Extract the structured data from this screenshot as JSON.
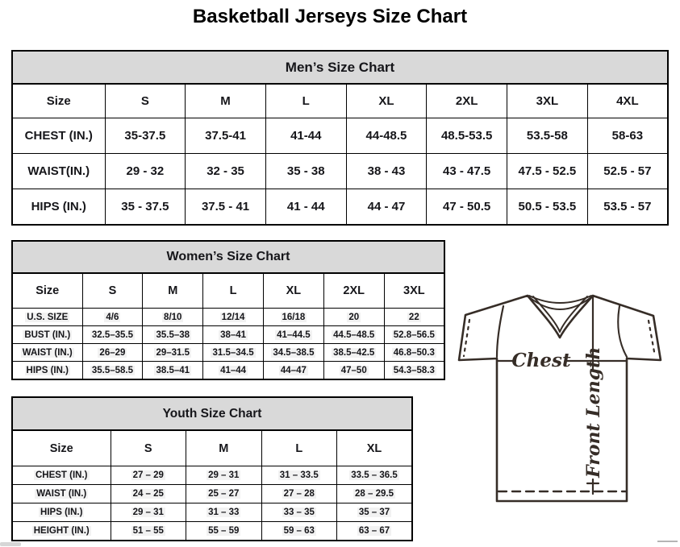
{
  "page": {
    "title": "Basketball Jerseys Size Chart"
  },
  "tables": {
    "men": {
      "title": "Men’s Size Chart",
      "columns": [
        "Size",
        "S",
        "M",
        "L",
        "XL",
        "2XL",
        "3XL",
        "4XL"
      ],
      "rows": [
        {
          "label": "CHEST (IN.)",
          "values": [
            "35-37.5",
            "37.5-41",
            "41-44",
            "44-48.5",
            "48.5-53.5",
            "53.5-58",
            "58-63"
          ]
        },
        {
          "label": "WAIST(IN.)",
          "values": [
            "29 - 32",
            "32 - 35",
            "35 - 38",
            "38 - 43",
            "43 - 47.5",
            "47.5 - 52.5",
            "52.5 - 57"
          ]
        },
        {
          "label": "HIPS (IN.)",
          "values": [
            "35 - 37.5",
            "37.5 - 41",
            "41 - 44",
            "44 - 47",
            "47 - 50.5",
            "50.5 - 53.5",
            "53.5 - 57"
          ]
        }
      ]
    },
    "women": {
      "title": "Women’s Size Chart",
      "columns": [
        "Size",
        "S",
        "M",
        "L",
        "XL",
        "2XL",
        "3XL"
      ],
      "rows": [
        {
          "label": "U.S. SIZE",
          "values": [
            "4/6",
            "8/10",
            "12/14",
            "16/18",
            "20",
            "22"
          ]
        },
        {
          "label": "BUST (IN.)",
          "values": [
            "32.5–35.5",
            "35.5–38",
            "38–41",
            "41–44.5",
            "44.5–48.5",
            "52.8–56.5"
          ]
        },
        {
          "label": "WAIST (IN.)",
          "values": [
            "26–29",
            "29–31.5",
            "31.5–34.5",
            "34.5–38.5",
            "38.5–42.5",
            "46.8–50.3"
          ]
        },
        {
          "label": "HIPS (IN.)",
          "values": [
            "35.5–58.5",
            "38.5–41",
            "41–44",
            "44–47",
            "47–50",
            "54.3–58.3"
          ]
        }
      ]
    },
    "youth": {
      "title": "Youth Size Chart",
      "columns": [
        "Size",
        "S",
        "M",
        "L",
        "XL"
      ],
      "rows": [
        {
          "label": "CHEST (IN.)",
          "values": [
            "27 – 29",
            "29 – 31",
            "31 – 33.5",
            "33.5 – 36.5"
          ]
        },
        {
          "label": "WAIST (IN.)",
          "values": [
            "24 – 25",
            "25 – 27",
            "27 – 28",
            "28 – 29.5"
          ]
        },
        {
          "label": "HIPS (IN.)",
          "values": [
            "29 – 31",
            "31 – 33",
            "33 – 35",
            "35 – 37"
          ]
        },
        {
          "label": "HEIGHT (IN.)",
          "values": [
            "51 – 55",
            "55 – 59",
            "59 – 63",
            "63 – 67"
          ]
        }
      ]
    }
  },
  "diagram": {
    "chest_label": "Chest",
    "front_length_label": "Front Length"
  },
  "colors": {
    "header_band_bg": "#d9d9d9",
    "table_border": "#000000",
    "diagram_stroke": "#362d27",
    "cell_highlight": "#f2f2f2"
  }
}
